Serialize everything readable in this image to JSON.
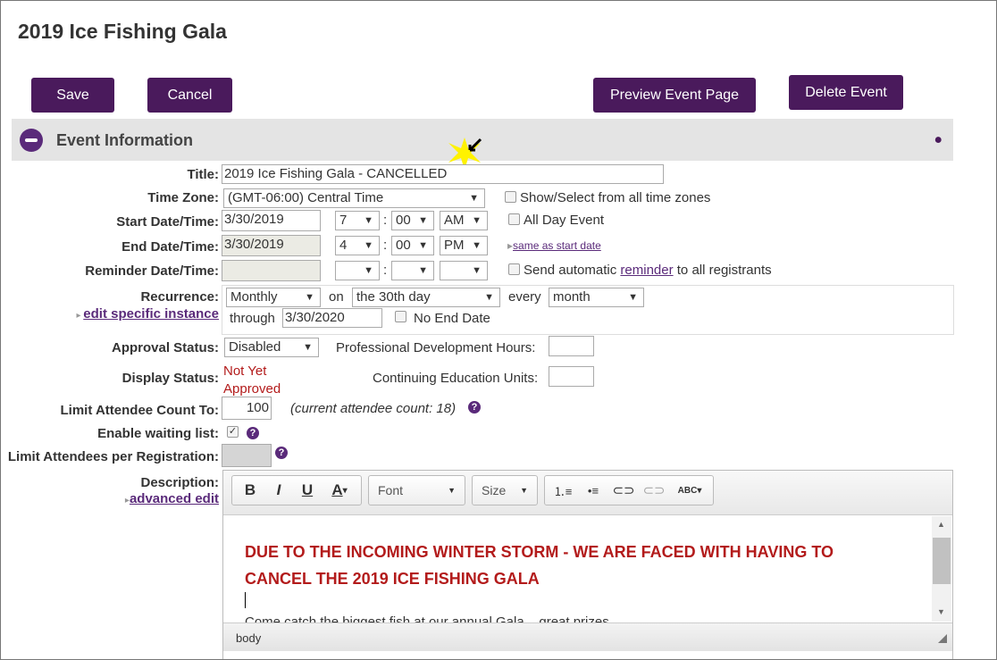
{
  "page": {
    "title": "2019 Ice Fishing Gala"
  },
  "buttons": {
    "save": "Save",
    "cancel": "Cancel",
    "preview": "Preview Event Page",
    "delete": "Delete Event"
  },
  "section": {
    "title": "Event Information"
  },
  "form": {
    "title_label": "Title:",
    "title_value": "2019 Ice Fishing Gala - CANCELLED",
    "tz_label": "Time Zone:",
    "tz_value": "(GMT-06:00) Central Time",
    "tz_all": "Show/Select from all time zones",
    "start_label": "Start Date/Time:",
    "start_date": "3/30/2019",
    "start_hour": "7",
    "start_min": "00",
    "start_ampm": "AM",
    "all_day": "All Day Event",
    "end_label": "End Date/Time:",
    "end_date": "3/30/2019",
    "end_hour": "4",
    "end_min": "00",
    "end_ampm": "PM",
    "same_as_start": "same as start date",
    "reminder_label": "Reminder Date/Time:",
    "reminder_pre": "Send automatic ",
    "reminder_link": "reminder",
    "reminder_post": " to all registrants",
    "recurrence_label": "Recurrence:",
    "edit_instance": "edit specific instance",
    "rec_freq": "Monthly",
    "rec_on": "on",
    "rec_day": "the 30th day",
    "rec_every": "every",
    "rec_unit": "month",
    "rec_through": "through",
    "rec_through_date": "3/30/2020",
    "no_end": "No End Date",
    "approval_label": "Approval Status:",
    "approval_value": "Disabled",
    "pdh_label": "Professional Development Hours:",
    "display_label": "Display Status:",
    "display_value_1": "Not Yet",
    "display_value_2": "Approved",
    "ceu_label": "Continuing Education Units:",
    "limit_label": "Limit Attendee Count To:",
    "limit_value": "100",
    "current_count": "(current attendee count: 18)",
    "waiting_label": "Enable waiting list:",
    "per_reg_label": "Limit Attendees per Registration:",
    "desc_label": "Description:",
    "advanced_edit": "advanced edit"
  },
  "editor": {
    "bold": "B",
    "italic": "I",
    "underline": "U",
    "color": "A",
    "font": "Font",
    "size": "Size",
    "spell": "ABC",
    "line1": "DUE TO THE INCOMING WINTER STORM - WE ARE FACED WITH HAVING TO",
    "line2": "CANCEL THE 2019 ICE FISHING GALA",
    "body_text": "Come catch the biggest fish at our annual Gala... great prizes",
    "path": "body"
  },
  "colors": {
    "brand": "#4a1a5c",
    "alert": "#b31b1b"
  }
}
